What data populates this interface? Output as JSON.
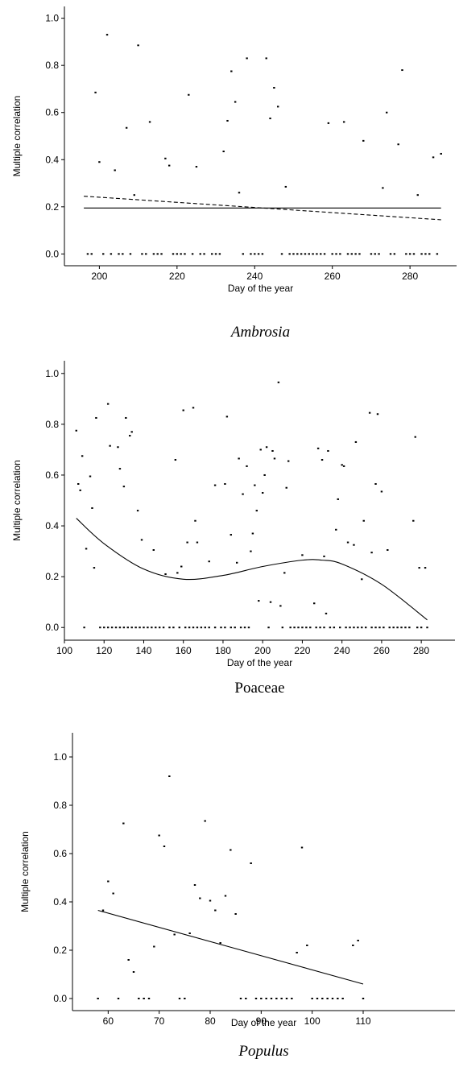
{
  "chart_data": [
    {
      "type": "scatter",
      "title": "Ambrosia",
      "title_italic": true,
      "x_label": "Day of the year",
      "y_label": "Multiple correlation",
      "xlim": [
        191,
        292
      ],
      "ylim": [
        -0.05,
        1.05
      ],
      "xticks": [
        200,
        220,
        240,
        260,
        280
      ],
      "yticks": [
        {
          "value": 0,
          "label": "0.0"
        },
        0.2,
        0.4,
        0.6,
        0.8,
        {
          "value": 1,
          "label": "1.0"
        }
      ],
      "color": "#000000",
      "points": {
        "x": [
          199,
          200,
          202,
          204,
          207,
          209,
          210,
          213,
          217,
          218,
          223,
          225,
          232,
          233,
          234,
          235,
          236,
          238,
          243,
          244,
          245,
          246,
          248,
          259,
          263,
          268,
          273,
          274,
          277,
          278,
          282,
          286,
          288,
          197,
          198,
          201,
          203,
          205,
          206,
          208,
          211,
          212,
          214,
          215,
          216,
          219,
          220,
          221,
          222,
          224,
          226,
          227,
          229,
          230,
          231,
          237,
          239,
          240,
          241,
          242,
          247,
          249,
          250,
          251,
          252,
          253,
          254,
          255,
          256,
          257,
          258,
          260,
          261,
          262,
          264,
          265,
          266,
          267,
          270,
          271,
          272,
          275,
          276,
          279,
          280,
          281,
          283,
          284,
          285,
          287
        ],
        "y": [
          0.685,
          0.39,
          0.93,
          0.355,
          0.535,
          0.25,
          0.885,
          0.56,
          0.405,
          0.375,
          0.675,
          0.37,
          0.435,
          0.565,
          0.775,
          0.645,
          0.26,
          0.83,
          0.83,
          0.575,
          0.705,
          0.625,
          0.285,
          0.555,
          0.56,
          0.48,
          0.28,
          0.6,
          0.465,
          0.78,
          0.25,
          0.41,
          0.425,
          0,
          0,
          0,
          0,
          0,
          0,
          0,
          0,
          0,
          0,
          0,
          0,
          0,
          0,
          0,
          0,
          0,
          0,
          0,
          0,
          0,
          0,
          0,
          0,
          0,
          0,
          0,
          0,
          0,
          0,
          0,
          0,
          0,
          0,
          0,
          0,
          0,
          0,
          0,
          0,
          0,
          0,
          0,
          0,
          0,
          0,
          0,
          0,
          0,
          0,
          0,
          0,
          0,
          0,
          0,
          0,
          0
        ]
      },
      "lines": [
        {
          "x": [
            196,
            288
          ],
          "y": [
            0.195,
            0.195
          ],
          "dashed": false
        },
        {
          "x": [
            196,
            288
          ],
          "y": [
            0.245,
            0.145
          ],
          "dashed": true
        }
      ]
    },
    {
      "type": "scatter",
      "title": "Poaceae",
      "title_italic": false,
      "x_label": "Day of the year",
      "y_label": "Multiple correlation",
      "xlim": [
        100,
        297
      ],
      "ylim": [
        -0.05,
        1.05
      ],
      "xticks": [
        100,
        120,
        140,
        160,
        180,
        200,
        220,
        240,
        260,
        280
      ],
      "yticks": [
        {
          "value": 0,
          "label": "0.0"
        },
        0.2,
        0.4,
        0.6,
        0.8,
        {
          "value": 1,
          "label": "1.0"
        }
      ],
      "color": "#000000",
      "points": {
        "x": [
          106,
          107,
          108,
          109,
          111,
          113,
          114,
          115,
          116,
          122,
          123,
          127,
          128,
          130,
          131,
          133,
          134,
          137,
          139,
          145,
          151,
          156,
          157,
          159,
          160,
          162,
          165,
          166,
          167,
          173,
          176,
          181,
          182,
          184,
          187,
          188,
          190,
          192,
          194,
          195,
          196,
          197,
          198,
          199,
          200,
          201,
          202,
          204,
          205,
          206,
          208,
          209,
          211,
          212,
          213,
          220,
          226,
          228,
          230,
          231,
          232,
          233,
          237,
          238,
          240,
          241,
          243,
          246,
          247,
          250,
          251,
          254,
          255,
          257,
          258,
          260,
          263,
          276,
          277,
          279,
          282,
          110,
          118,
          120,
          122,
          124,
          126,
          128,
          130,
          132,
          134,
          136,
          138,
          140,
          142,
          144,
          146,
          148,
          150,
          153,
          155,
          158,
          161,
          163,
          165,
          167,
          169,
          171,
          173,
          176,
          179,
          181,
          184,
          186,
          189,
          191,
          193,
          203,
          210,
          214,
          216,
          218,
          220,
          222,
          224,
          227,
          229,
          231,
          234,
          236,
          239,
          242,
          244,
          246,
          248,
          250,
          252,
          255,
          257,
          259,
          261,
          264,
          266,
          268,
          270,
          272,
          274,
          278,
          280,
          283
        ],
        "y": [
          0.775,
          0.565,
          0.54,
          0.675,
          0.31,
          0.595,
          0.47,
          0.235,
          0.825,
          0.88,
          0.715,
          0.71,
          0.625,
          0.555,
          0.825,
          0.755,
          0.77,
          0.46,
          0.345,
          0.305,
          0.21,
          0.66,
          0.215,
          0.24,
          0.855,
          0.335,
          0.865,
          0.42,
          0.335,
          0.26,
          0.56,
          0.565,
          0.83,
          0.365,
          0.255,
          0.665,
          0.525,
          0.635,
          0.3,
          0.37,
          0.56,
          0.46,
          0.105,
          0.7,
          0.53,
          0.6,
          0.71,
          0.1,
          0.695,
          0.665,
          0.965,
          0.085,
          0.215,
          0.55,
          0.655,
          0.285,
          0.095,
          0.705,
          0.66,
          0.28,
          0.055,
          0.695,
          0.385,
          0.505,
          0.64,
          0.635,
          0.335,
          0.325,
          0.73,
          0.19,
          0.42,
          0.845,
          0.295,
          0.565,
          0.84,
          0.535,
          0.305,
          0.42,
          0.75,
          0.235,
          0.235,
          0,
          0,
          0,
          0,
          0,
          0,
          0,
          0,
          0,
          0,
          0,
          0,
          0,
          0,
          0,
          0,
          0,
          0,
          0,
          0,
          0,
          0,
          0,
          0,
          0,
          0,
          0,
          0,
          0,
          0,
          0,
          0,
          0,
          0,
          0,
          0,
          0,
          0,
          0,
          0,
          0,
          0,
          0,
          0,
          0,
          0,
          0,
          0,
          0,
          0,
          0,
          0,
          0,
          0,
          0,
          0,
          0,
          0,
          0,
          0,
          0,
          0,
          0,
          0,
          0,
          0,
          0,
          0,
          0
        ]
      },
      "lines": [
        {
          "x": [
            106,
            120,
            140,
            160,
            180,
            200,
            220,
            230,
            240,
            260,
            283
          ],
          "y": [
            0.43,
            0.33,
            0.23,
            0.19,
            0.205,
            0.24,
            0.265,
            0.265,
            0.25,
            0.17,
            0.03
          ],
          "dashed": false
        }
      ]
    },
    {
      "type": "scatter",
      "title": "Populus",
      "title_italic": true,
      "x_label": "Day of the year",
      "y_label": "Multiple correlation",
      "xlim": [
        53,
        128
      ],
      "ylim": [
        -0.05,
        1.1
      ],
      "xticks": [
        60,
        70,
        80,
        90,
        100,
        110
      ],
      "yticks": [
        {
          "value": 0,
          "label": "0.0"
        },
        0.2,
        0.4,
        0.6,
        0.8,
        {
          "value": 1,
          "label": "1.0"
        }
      ],
      "color": "#000000",
      "points": {
        "x": [
          59,
          60,
          61,
          63,
          64,
          65,
          69,
          70,
          71,
          72,
          73,
          76,
          77,
          78,
          79,
          80,
          81,
          82,
          83,
          84,
          85,
          88,
          97,
          98,
          99,
          108,
          109,
          58,
          62,
          66,
          67,
          68,
          74,
          75,
          86,
          87,
          89,
          90,
          91,
          92,
          93,
          94,
          95,
          96,
          100,
          101,
          102,
          103,
          104,
          105,
          106,
          110
        ],
        "y": [
          0.365,
          0.485,
          0.435,
          0.725,
          0.16,
          0.11,
          0.215,
          0.675,
          0.63,
          0.92,
          0.265,
          0.27,
          0.47,
          0.415,
          0.735,
          0.405,
          0.365,
          0.23,
          0.425,
          0.615,
          0.35,
          0.56,
          0.19,
          0.625,
          0.22,
          0.22,
          0.24,
          0,
          0,
          0,
          0,
          0,
          0,
          0,
          0,
          0,
          0,
          0,
          0,
          0,
          0,
          0,
          0,
          0,
          0,
          0,
          0,
          0,
          0,
          0,
          0,
          0
        ]
      },
      "lines": [
        {
          "x": [
            58,
            110
          ],
          "y": [
            0.365,
            0.06
          ],
          "dashed": false
        }
      ]
    }
  ]
}
